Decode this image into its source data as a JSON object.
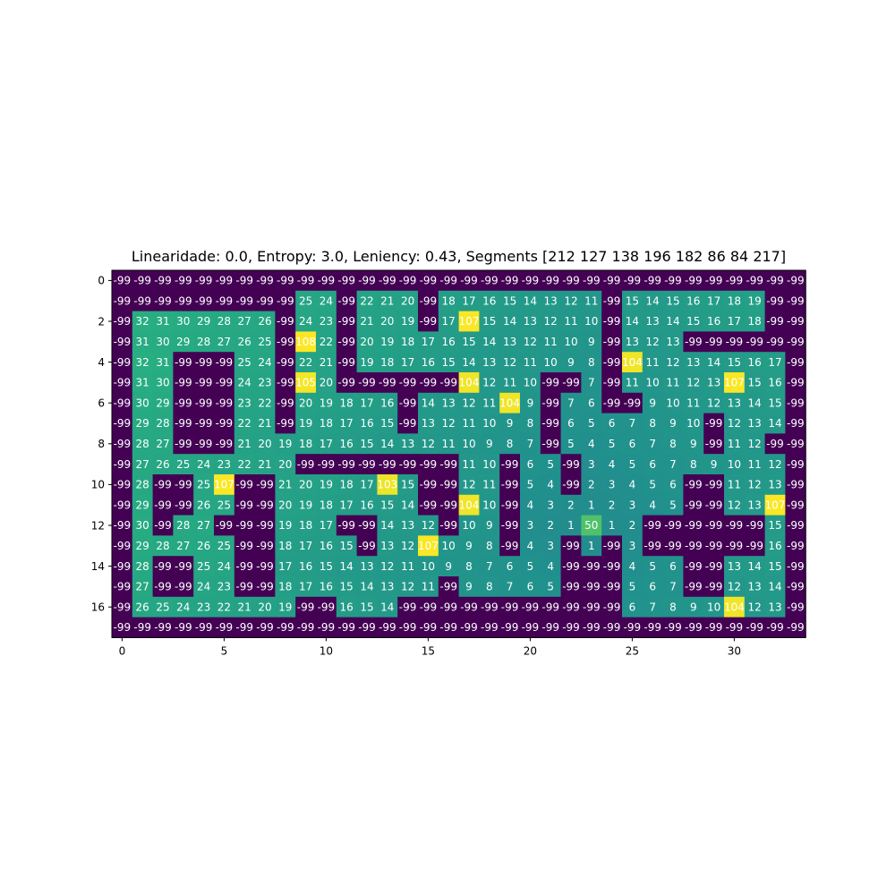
{
  "chart_data": {
    "type": "heatmap",
    "title": "Linearidade: 0.0, Entropy: 3.0, Leniency: 0.43, Segments [212 127 138 196 182  86  84 217]",
    "xlabel": "",
    "ylabel": "",
    "x_ticks": [
      0,
      5,
      10,
      15,
      20,
      25,
      30
    ],
    "y_ticks": [
      0,
      2,
      4,
      6,
      8,
      10,
      12,
      14,
      16
    ],
    "colormap": "viridis",
    "value_range": [
      -99,
      108
    ],
    "colors": {
      "low": "#440154",
      "mid": "#21918c",
      "high": "#fde725"
    },
    "grid": false,
    "values": [
      [
        -99,
        -99,
        -99,
        -99,
        -99,
        -99,
        -99,
        -99,
        -99,
        -99,
        -99,
        -99,
        -99,
        -99,
        -99,
        -99,
        -99,
        -99,
        -99,
        -99,
        -99,
        -99,
        -99,
        -99,
        -99,
        -99,
        -99,
        -99,
        -99,
        -99,
        -99,
        -99,
        -99,
        -99
      ],
      [
        -99,
        -99,
        -99,
        -99,
        -99,
        -99,
        -99,
        -99,
        -99,
        25,
        24,
        -99,
        22,
        21,
        20,
        -99,
        18,
        17,
        16,
        15,
        14,
        13,
        12,
        11,
        -99,
        15,
        14,
        15,
        16,
        17,
        18,
        19,
        -99,
        -99
      ],
      [
        -99,
        32,
        31,
        30,
        29,
        28,
        27,
        26,
        -99,
        24,
        23,
        -99,
        21,
        20,
        19,
        -99,
        17,
        107,
        15,
        14,
        13,
        12,
        11,
        10,
        -99,
        14,
        13,
        14,
        15,
        16,
        17,
        18,
        -99,
        -99
      ],
      [
        -99,
        31,
        30,
        29,
        28,
        27,
        26,
        25,
        -99,
        108,
        22,
        -99,
        20,
        19,
        18,
        17,
        16,
        15,
        14,
        13,
        12,
        11,
        10,
        9,
        -99,
        13,
        12,
        13,
        -99,
        -99,
        -99,
        -99,
        -99,
        -99
      ],
      [
        -99,
        32,
        31,
        -99,
        -99,
        -99,
        25,
        24,
        -99,
        22,
        21,
        -99,
        19,
        18,
        17,
        16,
        15,
        14,
        13,
        12,
        11,
        10,
        9,
        8,
        -99,
        104,
        11,
        12,
        13,
        14,
        15,
        16,
        17,
        -99
      ],
      [
        -99,
        31,
        30,
        -99,
        -99,
        -99,
        24,
        23,
        -99,
        105,
        20,
        -99,
        -99,
        -99,
        -99,
        -99,
        -99,
        104,
        12,
        11,
        10,
        -99,
        -99,
        7,
        -99,
        11,
        10,
        11,
        12,
        13,
        107,
        15,
        16,
        -99
      ],
      [
        -99,
        30,
        29,
        -99,
        -99,
        -99,
        23,
        22,
        -99,
        20,
        19,
        18,
        17,
        16,
        -99,
        14,
        13,
        12,
        11,
        104,
        9,
        -99,
        7,
        6,
        -99,
        -99,
        9,
        10,
        11,
        12,
        13,
        14,
        15,
        -99
      ],
      [
        -99,
        29,
        28,
        -99,
        -99,
        -99,
        22,
        21,
        -99,
        19,
        18,
        17,
        16,
        15,
        -99,
        13,
        12,
        11,
        10,
        9,
        8,
        -99,
        6,
        5,
        6,
        7,
        8,
        9,
        10,
        -99,
        12,
        13,
        14,
        -99
      ],
      [
        -99,
        28,
        27,
        -99,
        -99,
        -99,
        21,
        20,
        19,
        18,
        17,
        16,
        15,
        14,
        13,
        12,
        11,
        10,
        9,
        8,
        7,
        -99,
        5,
        4,
        5,
        6,
        7,
        8,
        9,
        -99,
        11,
        12,
        -99,
        -99
      ],
      [
        -99,
        27,
        26,
        25,
        24,
        23,
        22,
        21,
        20,
        -99,
        -99,
        -99,
        -99,
        -99,
        -99,
        -99,
        -99,
        11,
        10,
        -99,
        6,
        5,
        -99,
        3,
        4,
        5,
        6,
        7,
        8,
        9,
        10,
        11,
        12,
        -99
      ],
      [
        -99,
        28,
        -99,
        -99,
        25,
        107,
        -99,
        -99,
        21,
        20,
        19,
        18,
        17,
        103,
        15,
        -99,
        -99,
        12,
        11,
        -99,
        5,
        4,
        -99,
        2,
        3,
        4,
        5,
        6,
        -99,
        -99,
        11,
        12,
        13,
        -99
      ],
      [
        -99,
        29,
        -99,
        -99,
        26,
        25,
        -99,
        -99,
        20,
        19,
        18,
        17,
        16,
        15,
        14,
        -99,
        -99,
        104,
        10,
        -99,
        4,
        3,
        2,
        1,
        2,
        3,
        4,
        5,
        -99,
        -99,
        12,
        13,
        107,
        -99
      ],
      [
        -99,
        30,
        -99,
        28,
        27,
        -99,
        -99,
        -99,
        19,
        18,
        17,
        -99,
        -99,
        14,
        13,
        12,
        -99,
        10,
        9,
        -99,
        3,
        2,
        1,
        50,
        1,
        2,
        -99,
        -99,
        -99,
        -99,
        -99,
        -99,
        15,
        -99
      ],
      [
        -99,
        29,
        28,
        27,
        26,
        25,
        -99,
        -99,
        18,
        17,
        16,
        15,
        -99,
        13,
        12,
        107,
        10,
        9,
        8,
        -99,
        4,
        3,
        -99,
        1,
        -99,
        3,
        -99,
        -99,
        -99,
        -99,
        -99,
        -99,
        16,
        -99
      ],
      [
        -99,
        28,
        -99,
        -99,
        25,
        24,
        -99,
        -99,
        17,
        16,
        15,
        14,
        13,
        12,
        11,
        10,
        9,
        8,
        7,
        6,
        5,
        4,
        -99,
        -99,
        -99,
        4,
        5,
        6,
        -99,
        -99,
        13,
        14,
        15,
        -99
      ],
      [
        -99,
        27,
        -99,
        -99,
        24,
        23,
        -99,
        -99,
        18,
        17,
        16,
        15,
        14,
        13,
        12,
        11,
        -99,
        9,
        8,
        7,
        6,
        5,
        -99,
        -99,
        -99,
        5,
        6,
        7,
        -99,
        -99,
        12,
        13,
        14,
        -99
      ],
      [
        -99,
        26,
        25,
        24,
        23,
        22,
        21,
        20,
        19,
        -99,
        -99,
        16,
        15,
        14,
        -99,
        -99,
        -99,
        -99,
        -99,
        -99,
        -99,
        -99,
        -99,
        -99,
        -99,
        6,
        7,
        8,
        9,
        10,
        104,
        12,
        13,
        -99
      ],
      [
        -99,
        -99,
        -99,
        -99,
        -99,
        -99,
        -99,
        -99,
        -99,
        -99,
        -99,
        -99,
        -99,
        -99,
        -99,
        -99,
        -99,
        -99,
        -99,
        -99,
        -99,
        -99,
        -99,
        -99,
        -99,
        -99,
        -99,
        -99,
        -99,
        -99,
        -99,
        -99,
        -99,
        -99
      ]
    ]
  }
}
